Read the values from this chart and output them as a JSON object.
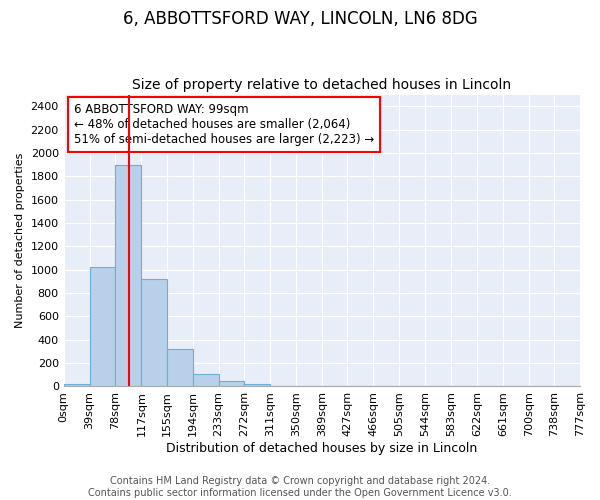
{
  "title": "6, ABBOTTSFORD WAY, LINCOLN, LN6 8DG",
  "subtitle": "Size of property relative to detached houses in Lincoln",
  "xlabel": "Distribution of detached houses by size in Lincoln",
  "ylabel": "Number of detached properties",
  "bin_edges": [
    0,
    39,
    78,
    117,
    155,
    194,
    233,
    272,
    311,
    350,
    389,
    427,
    466,
    505,
    544,
    583,
    622,
    661,
    700,
    738,
    777
  ],
  "bar_heights": [
    25,
    1020,
    1900,
    920,
    320,
    110,
    50,
    25,
    5,
    2,
    1,
    0,
    0,
    0,
    0,
    0,
    0,
    0,
    0,
    0
  ],
  "bar_color": "#b8d0ea",
  "bar_edge_color": "#6baed6",
  "red_line_x": 99,
  "annotation_text": "6 ABBOTTSFORD WAY: 99sqm\n← 48% of detached houses are smaller (2,064)\n51% of semi-detached houses are larger (2,223) →",
  "annotation_box_color": "white",
  "annotation_box_edge_color": "red",
  "ylim": [
    0,
    2500
  ],
  "yticks": [
    0,
    200,
    400,
    600,
    800,
    1000,
    1200,
    1400,
    1600,
    1800,
    2000,
    2200,
    2400
  ],
  "xtick_labels": [
    "0sqm",
    "39sqm",
    "78sqm",
    "117sqm",
    "155sqm",
    "194sqm",
    "233sqm",
    "272sqm",
    "311sqm",
    "350sqm",
    "389sqm",
    "427sqm",
    "466sqm",
    "505sqm",
    "544sqm",
    "583sqm",
    "622sqm",
    "661sqm",
    "700sqm",
    "738sqm",
    "777sqm"
  ],
  "background_color": "#e8eef8",
  "grid_color": "white",
  "footnote": "Contains HM Land Registry data © Crown copyright and database right 2024.\nContains public sector information licensed under the Open Government Licence v3.0.",
  "title_fontsize": 12,
  "subtitle_fontsize": 10,
  "xlabel_fontsize": 9,
  "ylabel_fontsize": 8,
  "tick_fontsize": 8,
  "annotation_fontsize": 8.5,
  "footnote_fontsize": 7
}
